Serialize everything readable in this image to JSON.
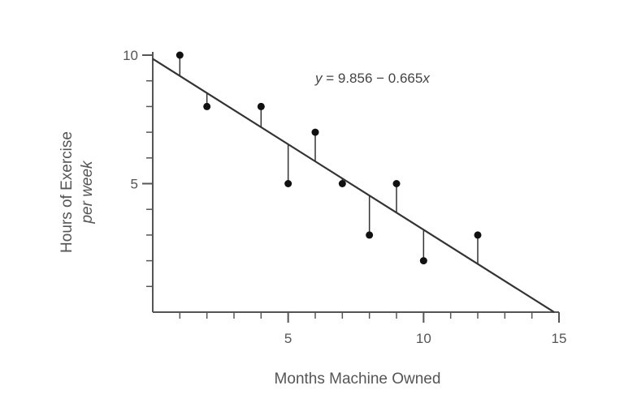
{
  "chart_data": {
    "type": "scatter",
    "title": "",
    "xlabel": "Months Machine Owned",
    "ylabel": "Hours of Exercise per week",
    "ylabel_lines": [
      "Hours of Exercise",
      "per week"
    ],
    "xlim": [
      0,
      15
    ],
    "ylim": [
      0,
      10
    ],
    "x_major_ticks": [
      5,
      10,
      15
    ],
    "x_minor_ticks": [
      1,
      2,
      3,
      4,
      6,
      7,
      8,
      9,
      11,
      12,
      13,
      14
    ],
    "y_major_ticks": [
      5,
      10
    ],
    "y_minor_ticks": [
      1,
      2,
      3,
      4,
      6,
      7,
      8,
      9
    ],
    "grid": false,
    "series": [
      {
        "points": [
          {
            "x": 1,
            "y": 10
          },
          {
            "x": 2,
            "y": 8
          },
          {
            "x": 4,
            "y": 8
          },
          {
            "x": 5,
            "y": 5
          },
          {
            "x": 6,
            "y": 7
          },
          {
            "x": 7,
            "y": 5
          },
          {
            "x": 8,
            "y": 3
          },
          {
            "x": 9,
            "y": 5
          },
          {
            "x": 10,
            "y": 2
          },
          {
            "x": 12,
            "y": 3
          }
        ],
        "show_residuals": true
      }
    ],
    "regression": {
      "intercept": 9.856,
      "slope": -0.665,
      "equation": "y = 9.856 − 0.665x",
      "equation_prefix": "y",
      "equation_middle": " = 9.856 − 0.665",
      "equation_suffix": "x"
    },
    "colors": {
      "axis": "#555555",
      "points": "#111111",
      "line": "#333333"
    }
  }
}
